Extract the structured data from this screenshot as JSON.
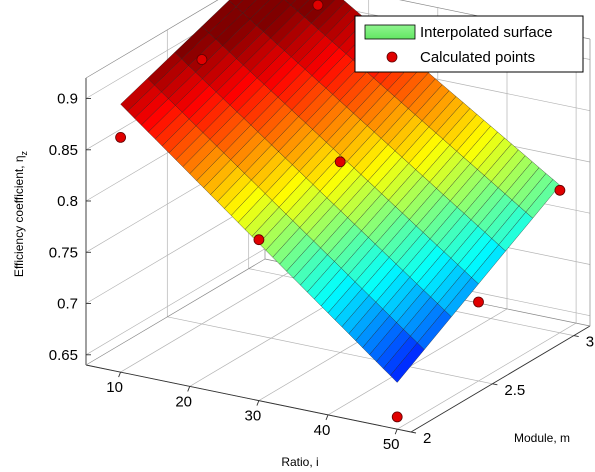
{
  "chart_data": {
    "type": "surface3d",
    "xlabel": "Ratio, i",
    "ylabel": "Module, m",
    "zlabel_main": "Efficiency coefficient, η",
    "zlabel_sub": "z",
    "x_ticks": [
      10,
      20,
      30,
      40,
      50
    ],
    "y_ticks": [
      2,
      2.5,
      3
    ],
    "z_ticks": [
      0.65,
      0.7,
      0.75,
      0.8,
      0.85,
      0.9
    ],
    "z_tick_labels": [
      "0.65",
      "0.7",
      "0.75",
      "0.8",
      "0.85",
      "0.9"
    ],
    "xlim": [
      5,
      52
    ],
    "ylim": [
      2,
      3.1
    ],
    "zlim": [
      0.64,
      0.92
    ],
    "grid": true,
    "colormap": "jet",
    "legend": {
      "position": "top-right",
      "entries": [
        {
          "label": "Interpolated surface",
          "swatch": "#7ff27f"
        },
        {
          "label": "Calculated points",
          "marker": "#e00000"
        }
      ]
    },
    "series": [
      {
        "name": "Calculated points",
        "points": [
          {
            "x": 10,
            "y": 2,
            "z": 0.869
          },
          {
            "x": 10,
            "y": 2.5,
            "z": 0.898
          },
          {
            "x": 10,
            "y": 3,
            "z": 0.922
          },
          {
            "x": 15,
            "y": 3,
            "z": 0.911
          },
          {
            "x": 30,
            "y": 2,
            "z": 0.797
          },
          {
            "x": 30,
            "y": 2.5,
            "z": 0.826
          },
          {
            "x": 30,
            "y": 3,
            "z": 0.875
          },
          {
            "x": 50,
            "y": 2,
            "z": 0.652
          },
          {
            "x": 50,
            "y": 2.5,
            "z": 0.717
          },
          {
            "x": 50,
            "y": 3,
            "z": 0.779
          }
        ]
      }
    ]
  }
}
